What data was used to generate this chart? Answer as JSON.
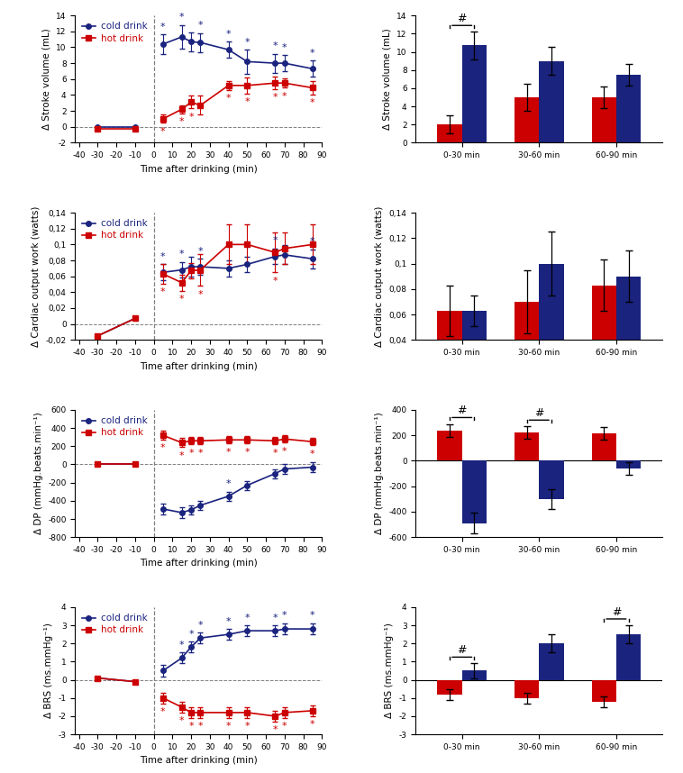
{
  "cold_color": "#1a237e",
  "hot_color": "#cc0000",
  "sv_line": {
    "time_pre": [
      -30,
      -10
    ],
    "cold_pre": [
      0.0,
      0.0
    ],
    "hot_pre": [
      -0.2,
      -0.2
    ],
    "time_post": [
      5,
      15,
      20,
      25,
      40,
      50,
      65,
      70,
      85
    ],
    "cold_post": [
      10.4,
      11.3,
      10.7,
      10.6,
      9.7,
      8.2,
      8.0,
      8.0,
      7.3
    ],
    "cold_post_err": [
      1.2,
      1.5,
      1.2,
      1.2,
      1.0,
      1.5,
      1.2,
      1.0,
      1.0
    ],
    "hot_post": [
      1.0,
      2.2,
      3.1,
      2.7,
      5.2,
      5.2,
      5.5,
      5.5,
      4.9
    ],
    "hot_post_err": [
      0.5,
      0.5,
      0.8,
      1.2,
      0.6,
      1.0,
      0.8,
      0.6,
      0.8
    ],
    "cold_star_idx": [
      0,
      1,
      3,
      4,
      5,
      6,
      7,
      8
    ],
    "hot_star_idx": [
      0,
      1,
      2,
      4,
      5,
      6,
      7,
      8
    ],
    "ylim": [
      -2,
      14
    ],
    "yticks": [
      -2,
      0,
      2,
      4,
      6,
      8,
      10,
      12,
      14
    ],
    "ylabel": "Δ Stroke volume (mL)"
  },
  "sv_bar": {
    "groups": [
      "0-30 min",
      "30-60 min",
      "60-90 min"
    ],
    "hot_vals": [
      2.0,
      5.0,
      5.0
    ],
    "hot_err": [
      1.0,
      1.5,
      1.2
    ],
    "cold_vals": [
      10.7,
      9.0,
      7.5
    ],
    "cold_err": [
      1.5,
      1.5,
      1.2
    ],
    "ylim": [
      0,
      14
    ],
    "yticks": [
      0,
      2,
      4,
      6,
      8,
      10,
      12,
      14
    ],
    "ylabel": "Δ Stroke volume (mL)",
    "hash_groups": [
      0
    ]
  },
  "co_line": {
    "time_pre": [
      -30,
      -10
    ],
    "cold_pre": [
      -0.015,
      0.007
    ],
    "hot_pre": [
      -0.015,
      0.007
    ],
    "time_post": [
      5,
      15,
      20,
      25,
      40,
      50,
      65,
      70,
      85
    ],
    "cold_post": [
      0.065,
      0.068,
      0.072,
      0.072,
      0.07,
      0.075,
      0.085,
      0.087,
      0.082
    ],
    "cold_post_err": [
      0.01,
      0.01,
      0.012,
      0.01,
      0.01,
      0.01,
      0.01,
      0.012,
      0.012
    ],
    "hot_post": [
      0.063,
      0.052,
      0.067,
      0.068,
      0.1,
      0.1,
      0.09,
      0.095,
      0.1
    ],
    "hot_post_err": [
      0.012,
      0.01,
      0.01,
      0.02,
      0.025,
      0.025,
      0.025,
      0.02,
      0.025
    ],
    "cold_star_idx": [
      0,
      1,
      3,
      5,
      6,
      8
    ],
    "hot_star_idx": [
      0,
      1,
      3,
      6
    ],
    "ylim": [
      -0.02,
      0.14
    ],
    "yticks": [
      -0.02,
      0.0,
      0.02,
      0.04,
      0.06,
      0.08,
      0.1,
      0.12,
      0.14
    ],
    "ylabel": "Δ Cardiac output work (watts)"
  },
  "co_bar": {
    "groups": [
      "0-30 min",
      "30-60 min",
      "60-90 min"
    ],
    "hot_vals": [
      0.063,
      0.07,
      0.083
    ],
    "hot_err": [
      0.02,
      0.025,
      0.02
    ],
    "cold_vals": [
      0.063,
      0.1,
      0.09
    ],
    "cold_err": [
      0.012,
      0.025,
      0.02
    ],
    "ylim": [
      0.04,
      0.14
    ],
    "yticks": [
      0.04,
      0.06,
      0.08,
      0.1,
      0.12,
      0.14
    ],
    "ylabel": "Δ Cardiac output work (watts)",
    "hash_groups": []
  },
  "dp_line": {
    "time_pre": [
      -30,
      -10
    ],
    "cold_pre": [
      0,
      0
    ],
    "hot_pre": [
      0,
      0
    ],
    "time_post": [
      5,
      15,
      20,
      25,
      40,
      50,
      65,
      70,
      85
    ],
    "cold_post": [
      -490,
      -530,
      -500,
      -450,
      -350,
      -230,
      -100,
      -50,
      -30
    ],
    "cold_post_err": [
      60,
      60,
      50,
      50,
      50,
      50,
      50,
      50,
      50
    ],
    "hot_post": [
      320,
      240,
      260,
      260,
      270,
      270,
      260,
      280,
      250
    ],
    "hot_post_err": [
      50,
      50,
      40,
      40,
      40,
      40,
      40,
      40,
      40
    ],
    "cold_star_idx": [
      4
    ],
    "hot_star_idx": [
      0,
      1,
      2,
      3,
      4,
      5,
      6,
      7,
      8
    ],
    "ylim": [
      -800,
      600
    ],
    "yticks": [
      -800,
      -600,
      -400,
      -200,
      0,
      200,
      400,
      600
    ],
    "ylabel": "Δ DP (mmHg.beats.min⁻¹)"
  },
  "dp_bar": {
    "groups": [
      "0-30 min",
      "30-60 min",
      "60-90 min"
    ],
    "hot_vals": [
      240,
      220,
      215
    ],
    "hot_err": [
      50,
      50,
      50
    ],
    "cold_vals": [
      -490,
      -300,
      -60
    ],
    "cold_err": [
      80,
      80,
      50
    ],
    "ylim": [
      -600,
      400
    ],
    "yticks": [
      -600,
      -400,
      -200,
      0,
      200,
      400
    ],
    "ylabel": "Δ DP (mmHg.beats.min⁻¹)",
    "hash_groups": [
      0,
      1
    ]
  },
  "brs_line": {
    "time_pre": [
      -30,
      -10
    ],
    "cold_pre": [
      0.1,
      -0.1
    ],
    "hot_pre": [
      0.1,
      -0.1
    ],
    "time_post": [
      5,
      15,
      20,
      25,
      40,
      50,
      65,
      70,
      85
    ],
    "cold_post": [
      0.5,
      1.2,
      1.8,
      2.3,
      2.5,
      2.7,
      2.7,
      2.8,
      2.8
    ],
    "cold_post_err": [
      0.3,
      0.3,
      0.3,
      0.3,
      0.3,
      0.3,
      0.3,
      0.3,
      0.3
    ],
    "hot_post": [
      -1.0,
      -1.5,
      -1.8,
      -1.8,
      -1.8,
      -1.8,
      -2.0,
      -1.8,
      -1.7
    ],
    "hot_post_err": [
      0.3,
      0.3,
      0.3,
      0.3,
      0.3,
      0.3,
      0.3,
      0.3,
      0.3
    ],
    "cold_star_idx": [
      1,
      2,
      3,
      4,
      5,
      6,
      7,
      8
    ],
    "hot_star_idx": [
      0,
      1,
      2,
      3,
      4,
      5,
      6,
      7,
      8
    ],
    "ylim": [
      -3,
      4
    ],
    "yticks": [
      -3,
      -2,
      -1,
      0,
      1,
      2,
      3,
      4
    ],
    "ylabel": "Δ BRS (ms.mmHg⁻¹)"
  },
  "brs_bar": {
    "groups": [
      "0-30 min",
      "30-60 min",
      "60-90 min"
    ],
    "hot_vals": [
      -0.8,
      -1.0,
      -1.2
    ],
    "hot_err": [
      0.3,
      0.3,
      0.3
    ],
    "cold_vals": [
      0.5,
      2.0,
      2.5
    ],
    "cold_err": [
      0.4,
      0.5,
      0.5
    ],
    "ylim": [
      -3,
      4
    ],
    "yticks": [
      -3,
      -2,
      -1,
      0,
      1,
      2,
      3,
      4
    ],
    "ylabel": "Δ BRS (ms.mmHg⁻¹)",
    "hash_groups": [
      0,
      2
    ]
  }
}
